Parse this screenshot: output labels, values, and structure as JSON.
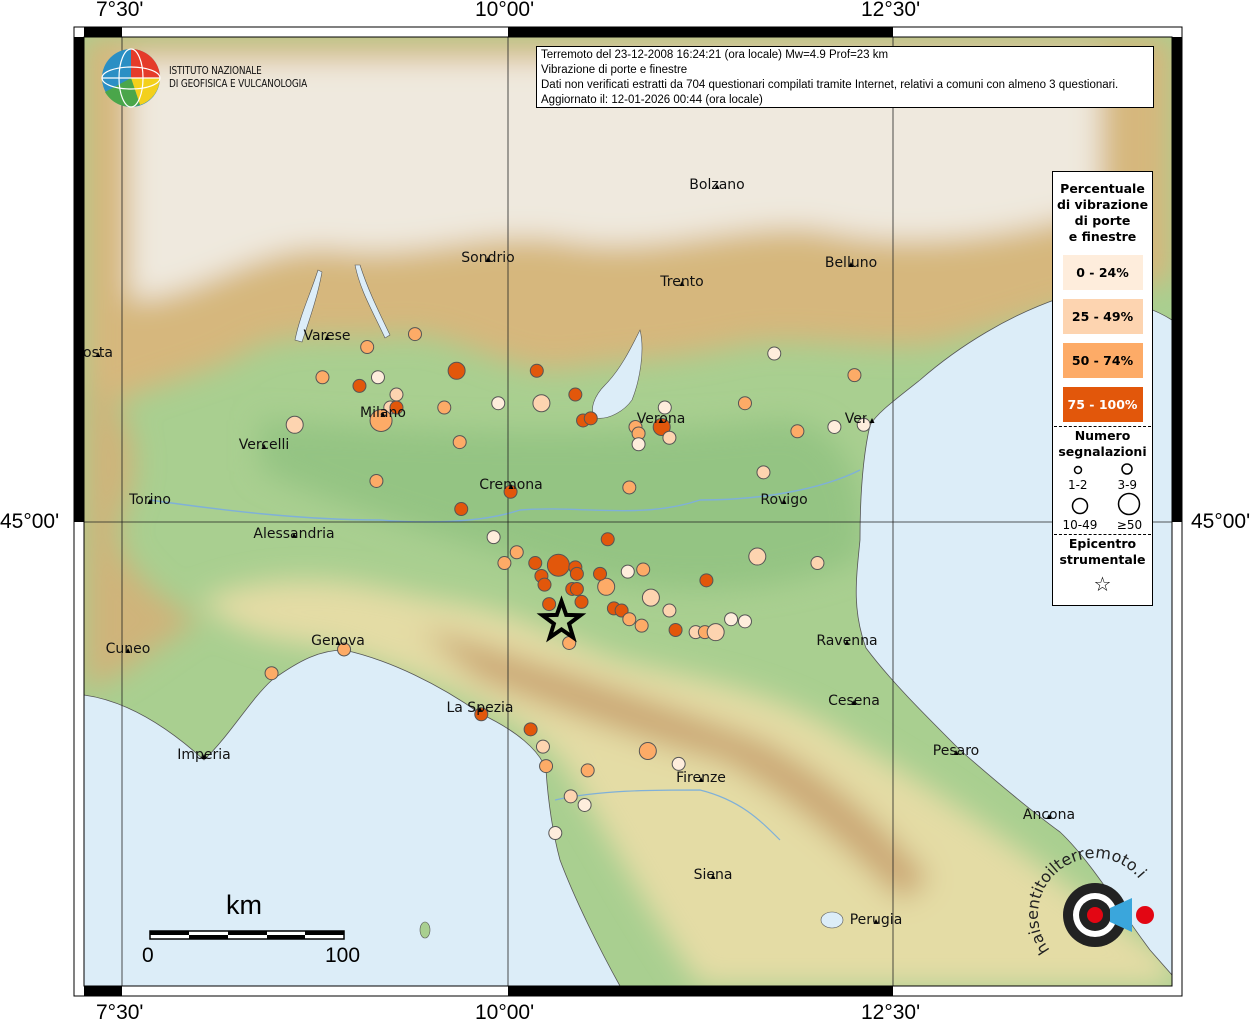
{
  "header": {
    "event_line": "Terremoto del 23-12-2008 16:24:21 (ora locale) Mw=4.9 Prof=23 km",
    "subject_line": "Vibrazione di porte e finestre",
    "disclaimer_line": "Dati non verificati estratti da 704 questionari compilati tramite Internet, relativi a comuni con almeno 3 questionari.",
    "updated_line": "Aggiornato il: 12-01-2026 00:44 (ora locale)"
  },
  "logos": {
    "ingv": "ISTITUTO NAZIONALE DI GEOFISICA E VULCANOLOGIA",
    "ingv_line1": "ISTITUTO NAZIONALE",
    "ingv_line2": "DI GEOFISICA E VULCANOLOGIA",
    "hst": "haisentitoilterremoto.it www."
  },
  "axes": {
    "lon_labels": [
      "7°30'",
      "10°00'",
      "12°30'"
    ],
    "lat_labels": [
      "45°00'"
    ]
  },
  "legend": {
    "title": "Percentuale di vibrazione di porte e finestre",
    "title_lines": [
      "Percentuale",
      "di vibrazione",
      "di porte",
      "e finestre"
    ],
    "classes": [
      {
        "label": "0 - 24%",
        "color": "#feeddc"
      },
      {
        "label": "25 - 49%",
        "color": "#fdd4b0"
      },
      {
        "label": "50 - 74%",
        "color": "#fdab67"
      },
      {
        "label": "75 - 100%",
        "color": "#e2570b"
      }
    ],
    "count_title_lines": [
      "Numero",
      "segnalazioni"
    ],
    "count_classes": [
      "1-2",
      "3-9",
      "10-49",
      "≥50"
    ],
    "epicenter_lines": [
      "Epicentro",
      "strumentale"
    ]
  },
  "scale_bar": {
    "unit": "km",
    "start": "0",
    "end": "100"
  },
  "cities": [
    "osta",
    "Varese",
    "Sondrio",
    "Bolzano",
    "Trento",
    "Belluno",
    "Milano",
    "Vercelli",
    "Verona",
    "Venezia",
    "Cremona",
    "Torino",
    "Rovigo",
    "Alessandria",
    "Cuneo",
    "Genova",
    "Ravenna",
    "La Spezia",
    "Cesena",
    "Pesaro",
    "Imperia",
    "Firenze",
    "Ancona",
    "Siena",
    "Perugia"
  ],
  "epicenter": {
    "lon": 10.35,
    "lat": 44.54
  },
  "observations": [
    {
      "lon": 9.4,
      "lat": 45.87,
      "cls": 2,
      "n": 1
    },
    {
      "lon": 9.09,
      "lat": 45.81,
      "cls": 2,
      "n": 1
    },
    {
      "lon": 8.8,
      "lat": 45.67,
      "cls": 2,
      "n": 1
    },
    {
      "lon": 9.16,
      "lat": 45.67,
      "cls": 0,
      "n": 1
    },
    {
      "lon": 9.04,
      "lat": 45.63,
      "cls": 3,
      "n": 1
    },
    {
      "lon": 9.67,
      "lat": 45.7,
      "cls": 3,
      "n": 2
    },
    {
      "lon": 9.28,
      "lat": 45.59,
      "cls": 1,
      "n": 1
    },
    {
      "lon": 9.24,
      "lat": 45.53,
      "cls": 1,
      "n": 1
    },
    {
      "lon": 9.28,
      "lat": 45.53,
      "cls": 3,
      "n": 1
    },
    {
      "lon": 9.18,
      "lat": 45.47,
      "cls": 2,
      "n": 3
    },
    {
      "lon": 8.62,
      "lat": 45.45,
      "cls": 1,
      "n": 2
    },
    {
      "lon": 9.59,
      "lat": 45.53,
      "cls": 2,
      "n": 1
    },
    {
      "lon": 9.94,
      "lat": 45.55,
      "cls": 0,
      "n": 1
    },
    {
      "lon": 9.69,
      "lat": 45.37,
      "cls": 2,
      "n": 1
    },
    {
      "lon": 9.15,
      "lat": 45.19,
      "cls": 2,
      "n": 1
    },
    {
      "lon": 9.7,
      "lat": 45.06,
      "cls": 3,
      "n": 1
    },
    {
      "lon": 10.02,
      "lat": 45.14,
      "cls": 3,
      "n": 1
    },
    {
      "lon": 10.19,
      "lat": 45.7,
      "cls": 3,
      "n": 1
    },
    {
      "lon": 10.22,
      "lat": 45.55,
      "cls": 1,
      "n": 2
    },
    {
      "lon": 10.44,
      "lat": 45.59,
      "cls": 3,
      "n": 1
    },
    {
      "lon": 10.49,
      "lat": 45.47,
      "cls": 3,
      "n": 1
    },
    {
      "lon": 10.54,
      "lat": 45.48,
      "cls": 3,
      "n": 1
    },
    {
      "lon": 11.02,
      "lat": 45.53,
      "cls": 0,
      "n": 1
    },
    {
      "lon": 10.83,
      "lat": 45.44,
      "cls": 2,
      "n": 1
    },
    {
      "lon": 10.85,
      "lat": 45.41,
      "cls": 2,
      "n": 1
    },
    {
      "lon": 11.0,
      "lat": 45.44,
      "cls": 3,
      "n": 2
    },
    {
      "lon": 11.05,
      "lat": 45.39,
      "cls": 1,
      "n": 1
    },
    {
      "lon": 10.85,
      "lat": 45.36,
      "cls": 0,
      "n": 1
    },
    {
      "lon": 10.79,
      "lat": 45.16,
      "cls": 2,
      "n": 1
    },
    {
      "lon": 11.54,
      "lat": 45.55,
      "cls": 2,
      "n": 1
    },
    {
      "lon": 11.88,
      "lat": 45.42,
      "cls": 2,
      "n": 1
    },
    {
      "lon": 11.73,
      "lat": 45.78,
      "cls": 0,
      "n": 1
    },
    {
      "lon": 12.25,
      "lat": 45.68,
      "cls": 2,
      "n": 1
    },
    {
      "lon": 12.12,
      "lat": 45.44,
      "cls": 0,
      "n": 1
    },
    {
      "lon": 12.31,
      "lat": 45.45,
      "cls": 0,
      "n": 1
    },
    {
      "lon": 11.66,
      "lat": 45.23,
      "cls": 1,
      "n": 1
    },
    {
      "lon": 9.91,
      "lat": 44.93,
      "cls": 0,
      "n": 1
    },
    {
      "lon": 10.06,
      "lat": 44.86,
      "cls": 2,
      "n": 1
    },
    {
      "lon": 9.98,
      "lat": 44.81,
      "cls": 2,
      "n": 1
    },
    {
      "lon": 10.33,
      "lat": 44.8,
      "cls": 3,
      "n": 3
    },
    {
      "lon": 10.18,
      "lat": 44.81,
      "cls": 3,
      "n": 1
    },
    {
      "lon": 10.22,
      "lat": 44.75,
      "cls": 3,
      "n": 1
    },
    {
      "lon": 10.24,
      "lat": 44.71,
      "cls": 3,
      "n": 1
    },
    {
      "lon": 10.44,
      "lat": 44.79,
      "cls": 3,
      "n": 1
    },
    {
      "lon": 10.45,
      "lat": 44.76,
      "cls": 3,
      "n": 1
    },
    {
      "lon": 10.42,
      "lat": 44.69,
      "cls": 3,
      "n": 1
    },
    {
      "lon": 10.45,
      "lat": 44.69,
      "cls": 3,
      "n": 1
    },
    {
      "lon": 10.64,
      "lat": 44.7,
      "cls": 2,
      "n": 2
    },
    {
      "lon": 10.6,
      "lat": 44.76,
      "cls": 3,
      "n": 1
    },
    {
      "lon": 10.48,
      "lat": 44.63,
      "cls": 3,
      "n": 1
    },
    {
      "lon": 10.27,
      "lat": 44.62,
      "cls": 3,
      "n": 1
    },
    {
      "lon": 10.65,
      "lat": 44.92,
      "cls": 3,
      "n": 1
    },
    {
      "lon": 10.78,
      "lat": 44.77,
      "cls": 0,
      "n": 1
    },
    {
      "lon": 10.88,
      "lat": 44.78,
      "cls": 2,
      "n": 1
    },
    {
      "lon": 10.93,
      "lat": 44.65,
      "cls": 1,
      "n": 2
    },
    {
      "lon": 11.05,
      "lat": 44.59,
      "cls": 1,
      "n": 1
    },
    {
      "lon": 10.69,
      "lat": 44.6,
      "cls": 3,
      "n": 1
    },
    {
      "lon": 10.74,
      "lat": 44.59,
      "cls": 3,
      "n": 1
    },
    {
      "lon": 10.79,
      "lat": 44.55,
      "cls": 2,
      "n": 1
    },
    {
      "lon": 10.87,
      "lat": 44.52,
      "cls": 2,
      "n": 1
    },
    {
      "lon": 11.09,
      "lat": 44.5,
      "cls": 3,
      "n": 1
    },
    {
      "lon": 11.22,
      "lat": 44.49,
      "cls": 1,
      "n": 1
    },
    {
      "lon": 11.28,
      "lat": 44.49,
      "cls": 2,
      "n": 1
    },
    {
      "lon": 11.35,
      "lat": 44.49,
      "cls": 1,
      "n": 2
    },
    {
      "lon": 11.45,
      "lat": 44.55,
      "cls": 0,
      "n": 1
    },
    {
      "lon": 11.54,
      "lat": 44.54,
      "cls": 0,
      "n": 1
    },
    {
      "lon": 11.29,
      "lat": 44.73,
      "cls": 3,
      "n": 1
    },
    {
      "lon": 11.62,
      "lat": 44.84,
      "cls": 1,
      "n": 2
    },
    {
      "lon": 12.01,
      "lat": 44.81,
      "cls": 1,
      "n": 1
    },
    {
      "lon": 10.4,
      "lat": 44.44,
      "cls": 2,
      "n": 1
    },
    {
      "lon": 8.94,
      "lat": 44.41,
      "cls": 2,
      "n": 1
    },
    {
      "lon": 8.47,
      "lat": 44.3,
      "cls": 2,
      "n": 1
    },
    {
      "lon": 9.83,
      "lat": 44.11,
      "cls": 3,
      "n": 1
    },
    {
      "lon": 10.15,
      "lat": 44.04,
      "cls": 3,
      "n": 1
    },
    {
      "lon": 10.23,
      "lat": 43.96,
      "cls": 1,
      "n": 1
    },
    {
      "lon": 10.25,
      "lat": 43.87,
      "cls": 2,
      "n": 1
    },
    {
      "lon": 10.52,
      "lat": 43.85,
      "cls": 2,
      "n": 1
    },
    {
      "lon": 10.91,
      "lat": 43.94,
      "cls": 2,
      "n": 2
    },
    {
      "lon": 11.11,
      "lat": 43.88,
      "cls": 0,
      "n": 1
    },
    {
      "lon": 10.41,
      "lat": 43.73,
      "cls": 1,
      "n": 1
    },
    {
      "lon": 10.5,
      "lat": 43.69,
      "cls": 0,
      "n": 1
    },
    {
      "lon": 10.31,
      "lat": 43.56,
      "cls": 0,
      "n": 1
    }
  ]
}
